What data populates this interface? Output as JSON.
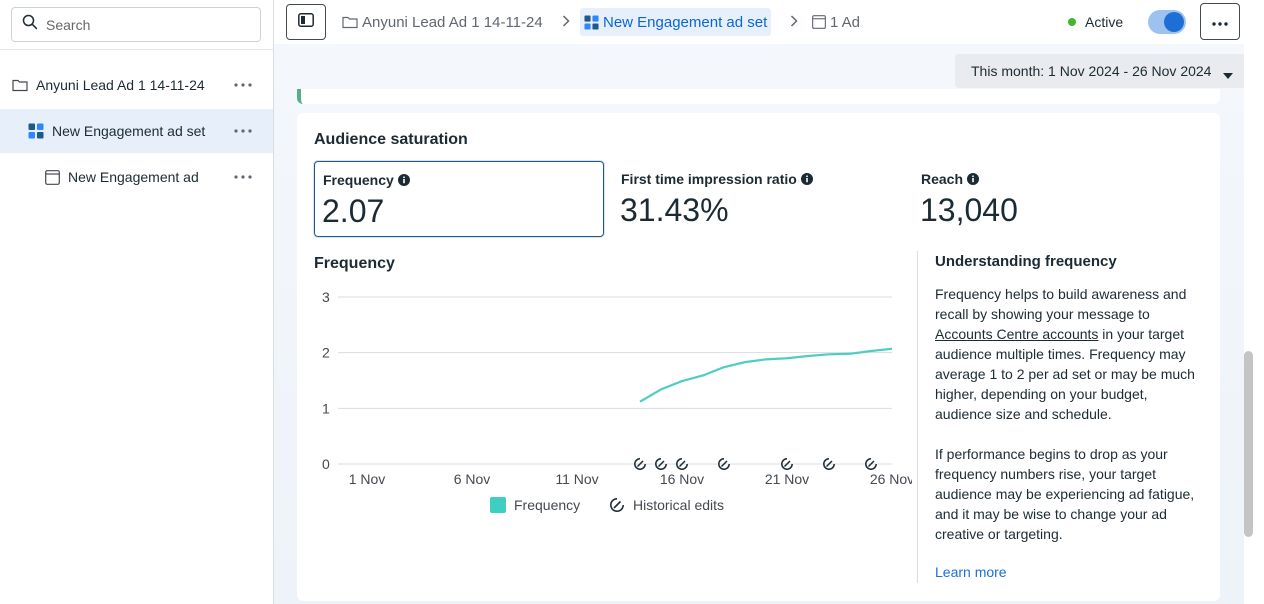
{
  "sidebar": {
    "search_placeholder": "Search",
    "items": [
      {
        "label": "Anyuni Lead Ad 1 14-11-24",
        "icon": "folder-icon"
      },
      {
        "label": "New Engagement ad set",
        "icon": "adset-grid-icon"
      },
      {
        "label": "New Engagement ad",
        "icon": "ad-icon"
      }
    ]
  },
  "topbar": {
    "breadcrumbs": [
      {
        "label": "Anyuni Lead Ad 1 14-11-24"
      },
      {
        "label": "New Engagement ad set"
      },
      {
        "label": "1 Ad"
      }
    ],
    "status_label": "Active",
    "toggle_on": true
  },
  "date_range": "This month: 1 Nov 2024 - 26 Nov 2024",
  "card": {
    "title": "Audience saturation",
    "metrics": [
      {
        "label": "Frequency",
        "value": "2.07"
      },
      {
        "label": "First time impression ratio",
        "value": "31.43%"
      },
      {
        "label": "Reach",
        "value": "13,040"
      }
    ],
    "chart_title": "Frequency",
    "legend": {
      "frequency": "Frequency",
      "edits": "Historical edits"
    }
  },
  "chart_data": {
    "type": "line",
    "title": "Frequency",
    "xlabel": "",
    "ylabel": "",
    "x_ticks": [
      "1 Nov",
      "6 Nov",
      "11 Nov",
      "16 Nov",
      "21 Nov",
      "26 Nov"
    ],
    "y_ticks": [
      "0",
      "1",
      "2",
      "3"
    ],
    "ylim": [
      0,
      3
    ],
    "xlim": [
      1,
      26
    ],
    "series": [
      {
        "name": "Frequency",
        "color": "#4ecdc4",
        "x": [
          14,
          15,
          16,
          17,
          18,
          19,
          20,
          21,
          22,
          23,
          24,
          25,
          26
        ],
        "values": [
          1.12,
          1.34,
          1.49,
          1.59,
          1.74,
          1.83,
          1.88,
          1.9,
          1.94,
          1.97,
          1.98,
          2.03,
          2.07
        ]
      }
    ],
    "historical_edit_days": [
      14,
      15,
      16,
      18,
      21,
      23,
      25
    ]
  },
  "info": {
    "title": "Understanding frequency",
    "para1_before": "Frequency helps to build awareness and recall by showing your message to ",
    "para1_link": "Accounts Centre accounts",
    "para1_after": " in your target audience multiple times. Frequency may average 1 to 2 per ad set or may be much higher, depending on your budget, audience size and schedule.",
    "para2": "If performance begins to drop as your frequency numbers rise, your target audience may be experiencing ad fatigue, and it may be wise to change your ad creative or targeting.",
    "learn_more": "Learn more"
  }
}
